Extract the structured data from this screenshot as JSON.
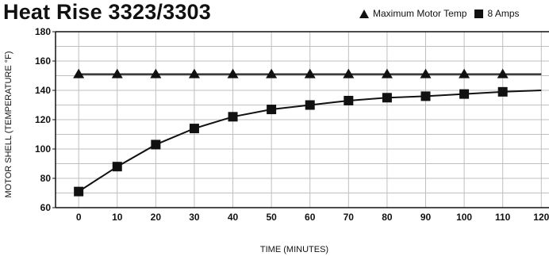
{
  "chart_data": {
    "type": "line",
    "title": "Heat Rise 3323/3303",
    "xlabel": "TIME (MINUTES)",
    "ylabel": "MOTOR SHELL (TEMPERATURE °F)",
    "xlim": [
      -6,
      122
    ],
    "ylim": [
      60,
      180
    ],
    "x_ticks": [
      0,
      10,
      20,
      30,
      40,
      50,
      60,
      70,
      80,
      90,
      100,
      110,
      120
    ],
    "y_ticks": [
      60,
      80,
      100,
      120,
      140,
      160,
      180
    ],
    "grid": true,
    "legend_position": "top-right",
    "series": [
      {
        "name": "Maximum Motor Temp",
        "marker": "triangle",
        "x": [
          0,
          10,
          20,
          30,
          40,
          50,
          60,
          70,
          80,
          90,
          100,
          110,
          120
        ],
        "y": [
          151,
          151,
          151,
          151,
          151,
          151,
          151,
          151,
          151,
          151,
          151,
          151,
          151
        ],
        "marker_x": [
          0,
          10,
          20,
          30,
          40,
          50,
          60,
          70,
          80,
          90,
          100,
          110
        ]
      },
      {
        "name": "8 Amps",
        "marker": "square",
        "x": [
          0,
          10,
          20,
          30,
          40,
          50,
          60,
          70,
          80,
          90,
          100,
          110,
          120
        ],
        "y": [
          71,
          88,
          103,
          114,
          122,
          127,
          130,
          133,
          135,
          136,
          137.5,
          139,
          140
        ],
        "marker_x": [
          0,
          10,
          20,
          30,
          40,
          50,
          60,
          70,
          80,
          90,
          100,
          110
        ]
      }
    ]
  },
  "colors": {
    "line": "#111111",
    "grid": "#bfbfbf",
    "axis": "#111111"
  }
}
